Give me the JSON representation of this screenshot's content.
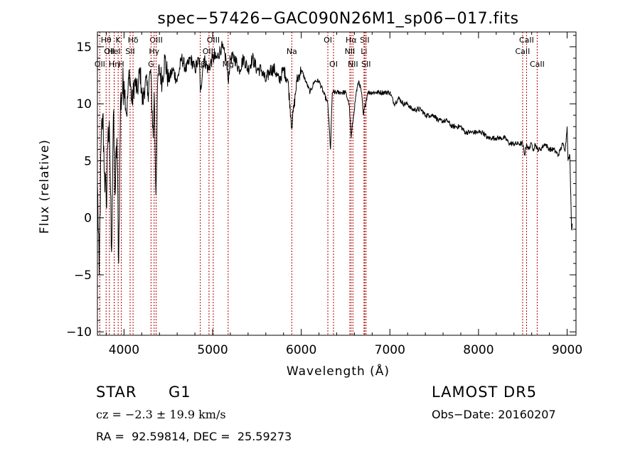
{
  "chart_data": {
    "type": "line",
    "title": "spec−57426−GAC090N26M1_sp06−017.fits",
    "xlabel": "Wavelength (Å)",
    "ylabel": "Flux (relative)",
    "xlim": [
      3700,
      9100
    ],
    "ylim": [
      -10.3,
      16.3
    ],
    "x_ticks": [
      4000,
      5000,
      6000,
      7000,
      8000,
      9000
    ],
    "y_ticks": [
      -10,
      -5,
      0,
      5,
      10,
      15
    ],
    "y_tick_labels": [
      "−10",
      "−5",
      "0",
      "5",
      "10",
      "15"
    ],
    "grid": false,
    "series": [
      {
        "x": [
          3700,
          3720,
          3740,
          3760,
          3780,
          3800,
          3820,
          3840,
          3860,
          3880,
          3900,
          3920,
          3940,
          3960,
          3980,
          4000,
          4030,
          4060,
          4090,
          4120,
          4150,
          4180,
          4210,
          4240,
          4270,
          4300,
          4330,
          4340,
          4360,
          4380,
          4400,
          4430,
          4460,
          4500,
          4550,
          4600,
          4650,
          4700,
          4750,
          4800,
          4850,
          4861,
          4900,
          4950,
          5000,
          5050,
          5100,
          5150,
          5175,
          5200,
          5250,
          5300,
          5350,
          5400,
          5450,
          5500,
          5550,
          5600,
          5650,
          5700,
          5750,
          5800,
          5850,
          5893,
          5950,
          6000,
          6050,
          6100,
          6150,
          6200,
          6250,
          6300,
          6330,
          6350,
          6400,
          6450,
          6500,
          6540,
          6563,
          6590,
          6620,
          6650,
          6680,
          6700,
          6750,
          6800,
          6850,
          6900,
          6950,
          7000,
          7050,
          7100,
          7150,
          7200,
          7250,
          7300,
          7350,
          7400,
          7450,
          7500,
          7550,
          7600,
          7650,
          7700,
          7750,
          7800,
          7850,
          7900,
          7950,
          8000,
          8050,
          8100,
          8150,
          8200,
          8250,
          8300,
          8350,
          8400,
          8450,
          8498,
          8520,
          8542,
          8560,
          8600,
          8620,
          8640,
          8662,
          8700,
          8750,
          8800,
          8850,
          8900,
          8950,
          8980,
          9000,
          9010,
          9030,
          9050,
          9060
        ],
        "y": [
          3,
          -5,
          6,
          9,
          4,
          1,
          8,
          6,
          -3,
          9,
          2,
          7,
          -4,
          10,
          11,
          12,
          9,
          13,
          10,
          12,
          11,
          13,
          10,
          12,
          11,
          13,
          7,
          11,
          2,
          12,
          13,
          12,
          14,
          12,
          13,
          12,
          14,
          13,
          14,
          13,
          14,
          11,
          14,
          13,
          14,
          14,
          15,
          14,
          12,
          14,
          14,
          13,
          14,
          13,
          14,
          13,
          13,
          12,
          13,
          13,
          12,
          13,
          12,
          8,
          12,
          13,
          12,
          11,
          12,
          12,
          11,
          10,
          6,
          11,
          11,
          11,
          11,
          10,
          7,
          9,
          11,
          12,
          11,
          9,
          11,
          11,
          11,
          11,
          11,
          11,
          10,
          10.5,
          10,
          10,
          9.5,
          9.5,
          9.5,
          9,
          9,
          9,
          8.5,
          8.5,
          8.5,
          8,
          8,
          8,
          7.5,
          7.5,
          7.5,
          7.5,
          7.5,
          7,
          7,
          7,
          7,
          7,
          6.5,
          6.5,
          6.5,
          6.5,
          5.5,
          6.5,
          6,
          6.5,
          6,
          6.5,
          6,
          6,
          6.5,
          6,
          6,
          5.5,
          6.5,
          6,
          8,
          5,
          5.5,
          -1,
          -0.5
        ]
      }
    ],
    "lines": [
      {
        "label": "Hθ",
        "x": 3798,
        "row": 1
      },
      {
        "label": "OII",
        "x": 3727,
        "row": 3
      },
      {
        "label": "OII",
        "x": 3835,
        "row": 2
      },
      {
        "label": "Hη",
        "x": 3889,
        "row": 3
      },
      {
        "label": "K",
        "x": 3934,
        "row": 1
      },
      {
        "label": "HeI",
        "x": 3889,
        "row": 2
      },
      {
        "label": "H",
        "x": 3969,
        "row": 3
      },
      {
        "label": "SII",
        "x": 4069,
        "row": 2
      },
      {
        "label": "Hδ",
        "x": 4102,
        "row": 1
      },
      {
        "label": "OIII",
        "x": 4363,
        "row": 1
      },
      {
        "label": "Hγ",
        "x": 4340,
        "row": 2
      },
      {
        "label": "G",
        "x": 4305,
        "row": 3
      },
      {
        "label": "OIII",
        "x": 5007,
        "row": 1
      },
      {
        "label": "OIII",
        "x": 4959,
        "row": 2
      },
      {
        "label": "Hβ",
        "x": 4861,
        "row": 3
      },
      {
        "label": "Mg",
        "x": 5175,
        "row": 3
      },
      {
        "label": "Na",
        "x": 5893,
        "row": 2
      },
      {
        "label": "OI",
        "x": 6300,
        "row": 1
      },
      {
        "label": "OI",
        "x": 6364,
        "row": 3
      },
      {
        "label": "Hα",
        "x": 6563,
        "row": 1
      },
      {
        "label": "NII",
        "x": 6548,
        "row": 2
      },
      {
        "label": "NII",
        "x": 6583,
        "row": 3
      },
      {
        "label": "SII",
        "x": 6716,
        "row": 1
      },
      {
        "label": "Li",
        "x": 6708,
        "row": 2
      },
      {
        "label": "SII",
        "x": 6731,
        "row": 3
      },
      {
        "label": "CaII",
        "x": 8542,
        "row": 1
      },
      {
        "label": "CaII",
        "x": 8498,
        "row": 2
      },
      {
        "label": "CaII",
        "x": 8662,
        "row": 3
      }
    ]
  },
  "info": {
    "object_class": "STAR",
    "subclass": "G1",
    "survey": "LAMOST DR5",
    "cz": "cz = −2.3 ± 19.9 km/s",
    "obs_date": "Obs−Date: 20160207",
    "coords": "RA =  92.59814, DEC =  25.59273"
  }
}
